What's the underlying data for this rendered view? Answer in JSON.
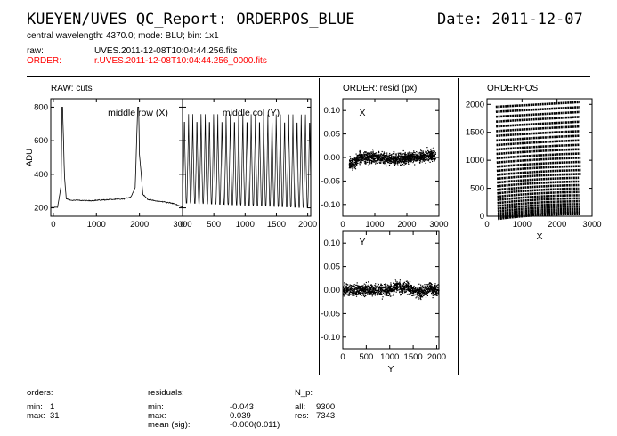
{
  "header": {
    "title": "KUEYEN/UVES QC_Report: ORDERPOS_BLUE",
    "date": "Date: 2011-12-07",
    "subtitle": "central wavelength: 4370.0; mode: BLU; bin: 1x1",
    "raw_label": "raw:",
    "raw_file": "UVES.2011-12-08T10:04:44.256.fits",
    "order_label": "ORDER:",
    "order_file": "r.UVES.2011-12-08T10:04:44.256_0000.fits",
    "accent_color": "#ff0000"
  },
  "footer": {
    "orders": {
      "heading": "orders:",
      "min_label": "min:",
      "min_value": "1",
      "max_label": "max:",
      "max_value": "31"
    },
    "residuals": {
      "heading": "residuals:",
      "min_label": "min:",
      "min_value": "-0.043",
      "max_label": "max:",
      "max_value": "0.039",
      "mean_label": "mean (sig):",
      "mean_value": "-0.000(0.011)"
    },
    "np": {
      "heading": "N_p:",
      "all_label": "all:",
      "all_value": "9300",
      "res_label": "res:",
      "res_value": "7343"
    }
  },
  "chart_data": [
    {
      "id": "raw_row",
      "type": "line",
      "section_title": "RAW: cuts",
      "title": "middle row (X)",
      "ylabel": "ADU",
      "xlim": [
        -60,
        3000
      ],
      "ylim": [
        150,
        850
      ],
      "xticks": [
        0,
        1000,
        2000,
        3000
      ],
      "yticks": [
        200,
        400,
        600,
        800
      ],
      "series": [
        {
          "x": [
            -60,
            100,
            180,
            200,
            215,
            260,
            300,
            400,
            600,
            800,
            1000,
            1200,
            1400,
            1600,
            1800,
            1900,
            1960,
            1980,
            2000,
            2080,
            2200,
            2400,
            2600,
            2800,
            2950,
            3000
          ],
          "values": [
            200,
            205,
            330,
            800,
            800,
            380,
            255,
            245,
            245,
            242,
            245,
            248,
            250,
            252,
            265,
            320,
            800,
            800,
            520,
            280,
            250,
            240,
            235,
            225,
            210,
            205
          ]
        }
      ]
    },
    {
      "id": "raw_col",
      "type": "line",
      "title": "middle col (Y)",
      "xlim": [
        0,
        2048
      ],
      "ylim": [
        150,
        850
      ],
      "xticks": [
        0,
        500,
        1000,
        1500,
        2000
      ],
      "orders": 31,
      "peak_value": 800,
      "base_start": 230,
      "base_end": 200
    },
    {
      "id": "resid_x",
      "type": "scatter",
      "section_title": "ORDER: resid (px)",
      "title": "X",
      "xlim": [
        0,
        3000
      ],
      "ylim": [
        -0.125,
        0.125
      ],
      "xticks": [
        0,
        1000,
        2000,
        3000
      ],
      "yticks": [
        -0.1,
        -0.05,
        0.0,
        0.05,
        0.1
      ],
      "x_range": [
        200,
        2900
      ],
      "spread": 0.012
    },
    {
      "id": "resid_y",
      "type": "scatter",
      "title": "Y",
      "xlabel": "Y",
      "xlim": [
        0,
        2048
      ],
      "ylim": [
        -0.125,
        0.125
      ],
      "xticks": [
        0,
        500,
        1000,
        1500,
        2000
      ],
      "yticks": [
        -0.1,
        -0.05,
        0.0,
        0.05,
        0.1
      ],
      "x_range": [
        0,
        2048
      ],
      "spread": 0.012
    },
    {
      "id": "orderpos",
      "type": "scatter",
      "section_title": "ORDERPOS",
      "xlabel": "X",
      "xlim": [
        0,
        3000
      ],
      "ylim": [
        0,
        2100
      ],
      "xticks": [
        0,
        1000,
        2000,
        3000
      ],
      "yticks": [
        0,
        500,
        1000,
        1500,
        2000
      ],
      "orders": 31,
      "x_range": [
        250,
        2700
      ],
      "y_range": [
        20,
        2000
      ]
    }
  ]
}
